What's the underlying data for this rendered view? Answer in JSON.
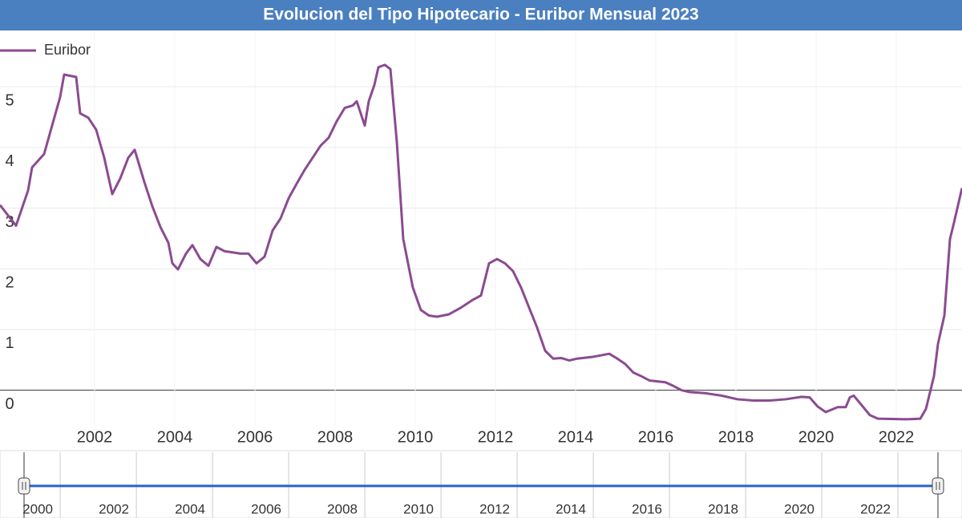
{
  "chart_data": {
    "type": "line",
    "title": "Evolucion del Tipo Hipotecario - Euribor Mensual 2023",
    "legend": "top-left",
    "grid": true,
    "xlim": [
      1999.64,
      2023.64
    ],
    "ylim": [
      -0.6,
      5.9
    ],
    "xticks": [
      2002,
      2004,
      2006,
      2008,
      2010,
      2012,
      2014,
      2016,
      2018,
      2020,
      2022
    ],
    "yticks": [
      0,
      1,
      2,
      3,
      4,
      5
    ],
    "navigator_xticks": [
      2000,
      2002,
      2004,
      2006,
      2008,
      2010,
      2012,
      2014,
      2016,
      2018,
      2020,
      2022
    ],
    "x": [
      1999.64,
      2000.04,
      2000.34,
      2000.44,
      2000.74,
      2000.94,
      2001.14,
      2001.24,
      2001.54,
      2001.64,
      2001.84,
      2002.04,
      2002.24,
      2002.44,
      2002.64,
      2002.84,
      2003.0,
      2003.24,
      2003.44,
      2003.64,
      2003.84,
      2003.94,
      2004.08,
      2004.28,
      2004.44,
      2004.64,
      2004.84,
      2005.04,
      2005.24,
      2005.64,
      2005.84,
      2006.04,
      2006.24,
      2006.44,
      2006.64,
      2006.84,
      2007.04,
      2007.24,
      2007.44,
      2007.64,
      2007.84,
      2008.04,
      2008.24,
      2008.44,
      2008.54,
      2008.74,
      2008.84,
      2008.98,
      2009.08,
      2009.24,
      2009.38,
      2009.54,
      2009.7,
      2009.94,
      2010.14,
      2010.34,
      2010.54,
      2010.84,
      2011.14,
      2011.44,
      2011.64,
      2011.84,
      2012.04,
      2012.24,
      2012.44,
      2012.64,
      2012.84,
      2013.04,
      2013.24,
      2013.44,
      2013.64,
      2013.84,
      2014.04,
      2014.44,
      2014.84,
      2015.04,
      2015.24,
      2015.44,
      2015.64,
      2015.84,
      2016.24,
      2016.44,
      2016.64,
      2016.84,
      2017.24,
      2017.64,
      2018.04,
      2018.44,
      2018.84,
      2019.24,
      2019.64,
      2019.84,
      2020.04,
      2020.24,
      2020.54,
      2020.74,
      2020.84,
      2020.94,
      2021.14,
      2021.34,
      2021.54,
      2022.24,
      2022.6,
      2022.74,
      2022.84,
      2022.94,
      2023.04,
      2023.2,
      2023.34,
      2023.44,
      2023.64
    ],
    "series": [
      {
        "name": "Euribor",
        "color": "#8b4b91",
        "values": [
          3.05,
          2.71,
          3.29,
          3.67,
          3.89,
          4.36,
          4.83,
          5.2,
          5.16,
          4.56,
          4.49,
          4.29,
          3.83,
          3.23,
          3.49,
          3.83,
          3.96,
          3.43,
          3.03,
          2.69,
          2.43,
          2.09,
          1.99,
          2.25,
          2.39,
          2.16,
          2.05,
          2.36,
          2.29,
          2.25,
          2.25,
          2.09,
          2.2,
          2.63,
          2.83,
          3.16,
          3.4,
          3.63,
          3.83,
          4.03,
          4.16,
          4.43,
          4.65,
          4.69,
          4.76,
          4.36,
          4.76,
          5.03,
          5.32,
          5.36,
          5.29,
          4.09,
          2.49,
          1.69,
          1.32,
          1.23,
          1.21,
          1.25,
          1.36,
          1.49,
          1.56,
          2.09,
          2.16,
          2.09,
          1.96,
          1.69,
          1.36,
          1.03,
          0.65,
          0.52,
          0.53,
          0.49,
          0.52,
          0.55,
          0.6,
          0.52,
          0.43,
          0.29,
          0.23,
          0.16,
          0.13,
          0.07,
          0.0,
          -0.03,
          -0.05,
          -0.09,
          -0.15,
          -0.17,
          -0.17,
          -0.15,
          -0.11,
          -0.12,
          -0.27,
          -0.36,
          -0.28,
          -0.28,
          -0.12,
          -0.09,
          -0.25,
          -0.41,
          -0.47,
          -0.48,
          -0.47,
          -0.31,
          -0.04,
          0.23,
          0.76,
          1.23,
          2.49,
          2.76,
          3.33
        ]
      }
    ]
  }
}
